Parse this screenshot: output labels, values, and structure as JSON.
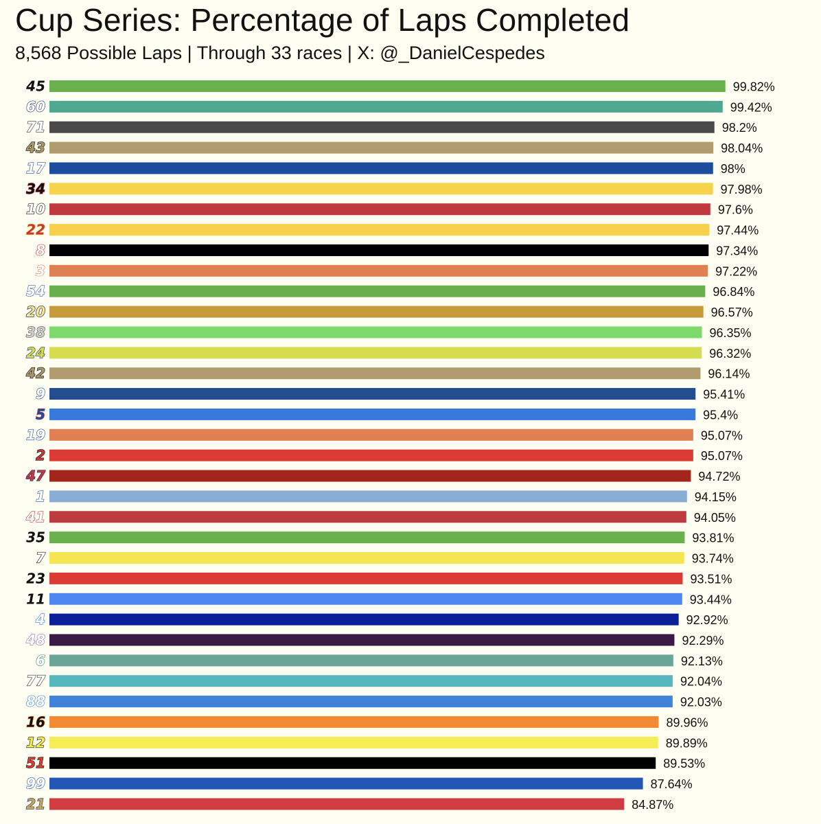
{
  "header": {
    "title": "Cup Series: Percentage of Laps Completed",
    "subtitle": "8,568 Possible Laps | Through 33 races | X: @_DanielCespedes"
  },
  "chart_data": {
    "type": "bar",
    "orientation": "horizontal",
    "title": "Cup Series: Percentage of Laps Completed",
    "subtitle": "8,568 Possible Laps | Through 33 races | X: @_DanielCespedes",
    "xlabel": "",
    "ylabel": "",
    "xlim": [
      0,
      100
    ],
    "grid": false,
    "value_suffix": "%",
    "categories": [
      "45",
      "60",
      "71",
      "43",
      "17",
      "34",
      "10",
      "22",
      "8",
      "3",
      "54",
      "20",
      "38",
      "24",
      "42",
      "9",
      "5",
      "19",
      "2",
      "47",
      "1",
      "41",
      "35",
      "7",
      "23",
      "11",
      "4",
      "48",
      "6",
      "77",
      "88",
      "16",
      "12",
      "51",
      "99",
      "21"
    ],
    "values": [
      99.82,
      99.42,
      98.2,
      98.04,
      98,
      97.98,
      97.6,
      97.44,
      97.34,
      97.22,
      96.84,
      96.57,
      96.35,
      96.32,
      96.14,
      95.41,
      95.4,
      95.07,
      95.07,
      94.72,
      94.15,
      94.05,
      93.81,
      93.74,
      93.51,
      93.44,
      92.92,
      92.29,
      92.13,
      92.04,
      92.03,
      89.96,
      89.89,
      89.53,
      87.64,
      84.87
    ],
    "labels": [
      "99.82%",
      "99.42%",
      "98.2%",
      "98.04%",
      "98%",
      "97.98%",
      "97.6%",
      "97.44%",
      "97.34%",
      "97.22%",
      "96.84%",
      "96.57%",
      "96.35%",
      "96.32%",
      "96.14%",
      "95.41%",
      "95.4%",
      "95.07%",
      "95.07%",
      "94.72%",
      "94.15%",
      "94.05%",
      "93.81%",
      "93.74%",
      "93.51%",
      "93.44%",
      "92.92%",
      "92.29%",
      "92.13%",
      "92.04%",
      "92.03%",
      "89.96%",
      "89.89%",
      "89.53%",
      "87.64%",
      "84.87%"
    ],
    "bar_colors": [
      "#6ab04c",
      "#4fa88f",
      "#4a4a4a",
      "#b09c6e",
      "#1c4d9c",
      "#f5d34a",
      "#c0393f",
      "#f6cf4c",
      "#000000",
      "#e07f52",
      "#69b04d",
      "#c69a3a",
      "#7cd96a",
      "#d6dc50",
      "#b09c6e",
      "#244d8f",
      "#3a79dc",
      "#e07f52",
      "#dc3a35",
      "#a3261d",
      "#8aaed3",
      "#bd3a3f",
      "#6ab04c",
      "#f6e553",
      "#dc3a35",
      "#4d86f0",
      "#0d1e99",
      "#3d1a46",
      "#6aa597",
      "#58b6bf",
      "#3f82d8",
      "#f28a33",
      "#f6ec54",
      "#000000",
      "#2356b5",
      "#cf3c42"
    ],
    "number_colors": [
      {
        "fill": "#111111",
        "stroke": "#ffffff"
      },
      {
        "fill": "#ffffff",
        "stroke": "#1c2f66"
      },
      {
        "fill": "#ffffff",
        "stroke": "#333333"
      },
      {
        "fill": "#a9976a",
        "stroke": "#111111"
      },
      {
        "fill": "#ffffff",
        "stroke": "#1c4d9c"
      },
      {
        "fill": "#111111",
        "stroke": "#c0393f"
      },
      {
        "fill": "#ffffff",
        "stroke": "#111111"
      },
      {
        "fill": "#c0393f",
        "stroke": "#f6cf4c"
      },
      {
        "fill": "#ffffff",
        "stroke": "#c0393f"
      },
      {
        "fill": "#ffffff",
        "stroke": "#e07f52"
      },
      {
        "fill": "#ffffff",
        "stroke": "#3a5fa3"
      },
      {
        "fill": "#f5e3a0",
        "stroke": "#111111"
      },
      {
        "fill": "#cccccc",
        "stroke": "#555555"
      },
      {
        "fill": "#d6dc50",
        "stroke": "#1c2f66"
      },
      {
        "fill": "#a9976a",
        "stroke": "#111111"
      },
      {
        "fill": "#ffffff",
        "stroke": "#244d8f"
      },
      {
        "fill": "#1c4d9c",
        "stroke": "#c0393f"
      },
      {
        "fill": "#ffffff",
        "stroke": "#1c4d9c"
      },
      {
        "fill": "#c0393f",
        "stroke": "#111111"
      },
      {
        "fill": "#c0393f",
        "stroke": "#1c2f66"
      },
      {
        "fill": "#ffffff",
        "stroke": "#1c4d9c"
      },
      {
        "fill": "#ffffff",
        "stroke": "#bd3a3f"
      },
      {
        "fill": "#111111",
        "stroke": "#ffffff"
      },
      {
        "fill": "#ffffff",
        "stroke": "#111111"
      },
      {
        "fill": "#111111",
        "stroke": "#ffffff"
      },
      {
        "fill": "#111111",
        "stroke": "#ffffff"
      },
      {
        "fill": "#ffffff",
        "stroke": "#3a79dc"
      },
      {
        "fill": "#ffffff",
        "stroke": "#8a6fb0"
      },
      {
        "fill": "#ffffff",
        "stroke": "#3e8a72"
      },
      {
        "fill": "#ffffff",
        "stroke": "#333333"
      },
      {
        "fill": "#ffffff",
        "stroke": "#3f82d8"
      },
      {
        "fill": "#111111",
        "stroke": "#f28a33"
      },
      {
        "fill": "#f6ec54",
        "stroke": "#111111"
      },
      {
        "fill": "#dc3a35",
        "stroke": "#111111"
      },
      {
        "fill": "#ffffff",
        "stroke": "#2356b5"
      },
      {
        "fill": "#c8a75a",
        "stroke": "#1c2f66"
      }
    ]
  }
}
